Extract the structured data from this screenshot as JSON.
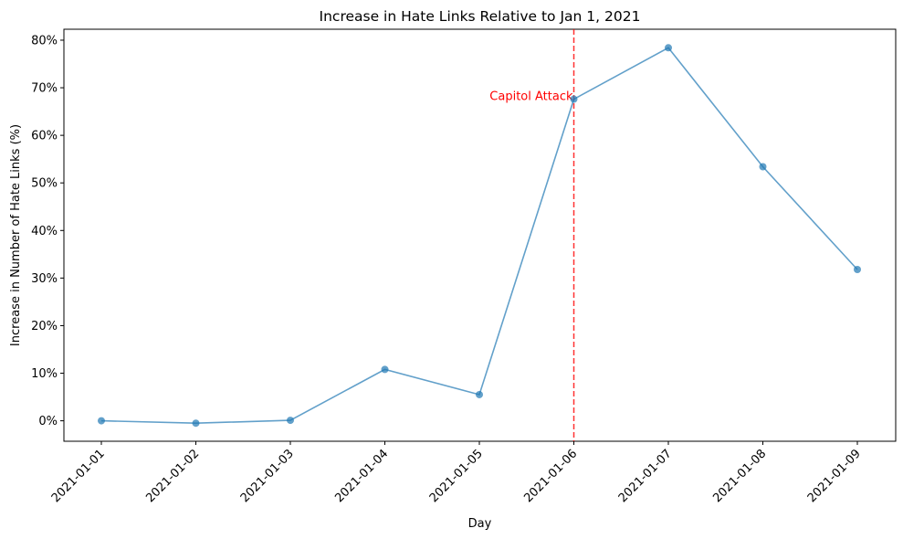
{
  "chart_data": {
    "type": "line",
    "title": "Increase in Hate Links Relative to Jan 1, 2021",
    "xlabel": "Day",
    "ylabel": "Increase in Number of Hate Links (%)",
    "categories": [
      "2021-01-01",
      "2021-01-02",
      "2021-01-03",
      "2021-01-04",
      "2021-01-05",
      "2021-01-06",
      "2021-01-07",
      "2021-01-08",
      "2021-01-09"
    ],
    "values": [
      0.0,
      -0.5,
      0.1,
      10.8,
      5.5,
      67.6,
      78.4,
      53.4,
      31.8
    ],
    "ylim": [
      -4.3,
      82.3
    ],
    "yticks": [
      0,
      10,
      20,
      30,
      40,
      50,
      60,
      70,
      80
    ],
    "ytick_labels": [
      "0%",
      "10%",
      "20%",
      "30%",
      "40%",
      "50%",
      "60%",
      "70%",
      "80%"
    ],
    "grid": false,
    "line_color": "#1f77b4",
    "event": {
      "x": "2021-01-06",
      "label": "Capitol Attack",
      "color": "#ff0000"
    }
  }
}
